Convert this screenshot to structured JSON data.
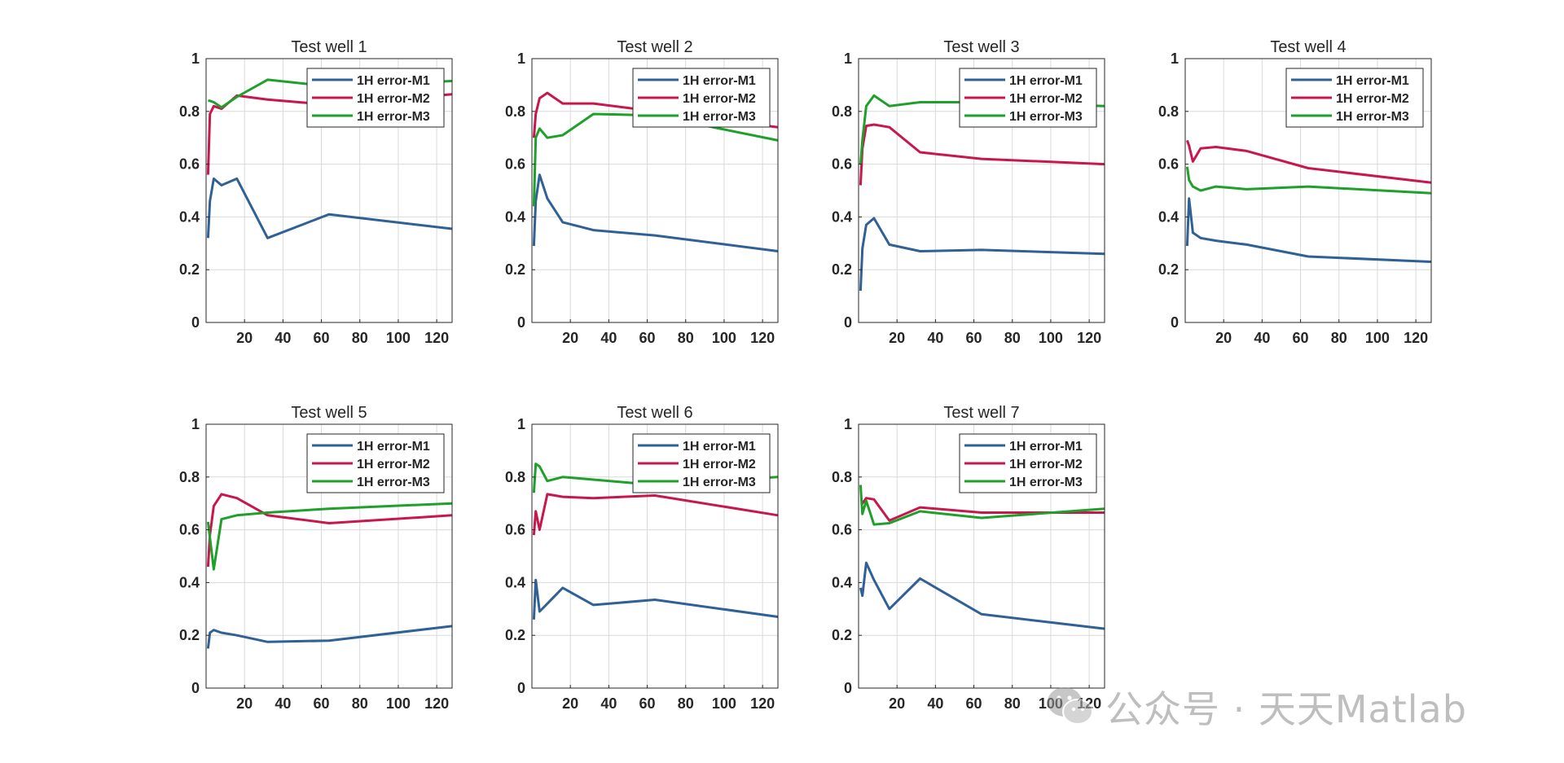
{
  "colors": {
    "M1": "#2f6196",
    "M2": "#c8174d",
    "M3": "#1ea02a",
    "grid": "#d9d9d9",
    "axis": "#262626"
  },
  "watermark": {
    "text": "公众号 · 天天Matlab",
    "icon": "wechat-icon"
  },
  "chart_data": [
    {
      "type": "line",
      "title": "Test well 1",
      "xlim": [
        0,
        128
      ],
      "ylim": [
        0,
        1
      ],
      "xticks": [
        "20",
        "40",
        "60",
        "80",
        "100",
        "120"
      ],
      "yticks": [
        "0",
        "0.2",
        "0.4",
        "0.6",
        "0.8",
        "1"
      ],
      "grid": true,
      "legend_position": "top-right",
      "x": [
        1,
        2,
        4,
        8,
        16,
        32,
        64,
        128
      ],
      "series": [
        {
          "name": "1H error-M1",
          "values": [
            0.32,
            0.46,
            0.545,
            0.52,
            0.545,
            0.32,
            0.41,
            0.355
          ]
        },
        {
          "name": "1H error-M2",
          "values": [
            0.56,
            0.79,
            0.82,
            0.81,
            0.86,
            0.845,
            0.825,
            0.865
          ]
        },
        {
          "name": "1H error-M3",
          "values": [
            0.84,
            0.84,
            0.835,
            0.815,
            0.855,
            0.92,
            0.895,
            0.915
          ]
        }
      ]
    },
    {
      "type": "line",
      "title": "Test well 2",
      "xlim": [
        0,
        128
      ],
      "ylim": [
        0,
        1
      ],
      "xticks": [
        "20",
        "40",
        "60",
        "80",
        "100",
        "120"
      ],
      "yticks": [
        "0",
        "0.2",
        "0.4",
        "0.6",
        "0.8",
        "1"
      ],
      "grid": true,
      "legend_position": "top-right",
      "x": [
        1,
        2,
        4,
        8,
        16,
        32,
        64,
        128
      ],
      "series": [
        {
          "name": "1H error-M1",
          "values": [
            0.29,
            0.46,
            0.56,
            0.47,
            0.38,
            0.35,
            0.33,
            0.27
          ]
        },
        {
          "name": "1H error-M2",
          "values": [
            0.7,
            0.79,
            0.85,
            0.87,
            0.83,
            0.83,
            0.8,
            0.74
          ]
        },
        {
          "name": "1H error-M3",
          "values": [
            0.44,
            0.7,
            0.735,
            0.7,
            0.71,
            0.79,
            0.785,
            0.69
          ]
        }
      ]
    },
    {
      "type": "line",
      "title": "Test well 3",
      "xlim": [
        0,
        128
      ],
      "ylim": [
        0,
        1
      ],
      "xticks": [
        "20",
        "40",
        "60",
        "80",
        "100",
        "120"
      ],
      "yticks": [
        "0",
        "0.2",
        "0.4",
        "0.6",
        "0.8",
        "1"
      ],
      "grid": true,
      "legend_position": "top-right",
      "x": [
        1,
        2,
        4,
        8,
        16,
        32,
        64,
        128
      ],
      "series": [
        {
          "name": "1H error-M1",
          "values": [
            0.12,
            0.28,
            0.37,
            0.395,
            0.295,
            0.27,
            0.275,
            0.26
          ]
        },
        {
          "name": "1H error-M2",
          "values": [
            0.52,
            0.66,
            0.745,
            0.75,
            0.74,
            0.645,
            0.62,
            0.6
          ]
        },
        {
          "name": "1H error-M3",
          "values": [
            0.6,
            0.69,
            0.82,
            0.86,
            0.82,
            0.835,
            0.835,
            0.82
          ]
        }
      ]
    },
    {
      "type": "line",
      "title": "Test well 4",
      "xlim": [
        0,
        128
      ],
      "ylim": [
        0,
        1
      ],
      "xticks": [
        "20",
        "40",
        "60",
        "80",
        "100",
        "120"
      ],
      "yticks": [
        "0",
        "0.2",
        "0.4",
        "0.6",
        "0.8",
        "1"
      ],
      "grid": true,
      "legend_position": "top-right",
      "x": [
        1,
        2,
        4,
        8,
        16,
        32,
        64,
        128
      ],
      "series": [
        {
          "name": "1H error-M1",
          "values": [
            0.29,
            0.47,
            0.34,
            0.32,
            0.31,
            0.295,
            0.25,
            0.23
          ]
        },
        {
          "name": "1H error-M2",
          "values": [
            0.69,
            0.67,
            0.61,
            0.66,
            0.665,
            0.65,
            0.585,
            0.53
          ]
        },
        {
          "name": "1H error-M3",
          "values": [
            0.59,
            0.54,
            0.515,
            0.5,
            0.515,
            0.505,
            0.515,
            0.49
          ]
        }
      ]
    },
    {
      "type": "line",
      "title": "Test well 5",
      "xlim": [
        0,
        128
      ],
      "ylim": [
        0,
        1
      ],
      "xticks": [
        "20",
        "40",
        "60",
        "80",
        "100",
        "120"
      ],
      "yticks": [
        "0",
        "0.2",
        "0.4",
        "0.6",
        "0.8",
        "1"
      ],
      "grid": true,
      "legend_position": "top-right",
      "x": [
        1,
        2,
        4,
        8,
        16,
        32,
        64,
        128
      ],
      "series": [
        {
          "name": "1H error-M1",
          "values": [
            0.15,
            0.21,
            0.22,
            0.21,
            0.2,
            0.175,
            0.18,
            0.235
          ]
        },
        {
          "name": "1H error-M2",
          "values": [
            0.46,
            0.58,
            0.69,
            0.735,
            0.72,
            0.655,
            0.625,
            0.655
          ]
        },
        {
          "name": "1H error-M3",
          "values": [
            0.63,
            0.57,
            0.45,
            0.64,
            0.655,
            0.665,
            0.68,
            0.7
          ]
        }
      ]
    },
    {
      "type": "line",
      "title": "Test well 6",
      "xlim": [
        0,
        128
      ],
      "ylim": [
        0,
        1
      ],
      "xticks": [
        "20",
        "40",
        "60",
        "80",
        "100",
        "120"
      ],
      "yticks": [
        "0",
        "0.2",
        "0.4",
        "0.6",
        "0.8",
        "1"
      ],
      "grid": true,
      "legend_position": "top-right",
      "x": [
        1,
        2,
        4,
        8,
        16,
        32,
        64,
        128
      ],
      "series": [
        {
          "name": "1H error-M1",
          "values": [
            0.26,
            0.41,
            0.29,
            0.32,
            0.38,
            0.315,
            0.335,
            0.27
          ]
        },
        {
          "name": "1H error-M2",
          "values": [
            0.58,
            0.67,
            0.6,
            0.735,
            0.725,
            0.72,
            0.73,
            0.655
          ]
        },
        {
          "name": "1H error-M3",
          "values": [
            0.74,
            0.85,
            0.84,
            0.785,
            0.8,
            0.79,
            0.77,
            0.8
          ]
        }
      ]
    },
    {
      "type": "line",
      "title": "Test well 7",
      "xlim": [
        0,
        128
      ],
      "ylim": [
        0,
        1
      ],
      "xticks": [
        "20",
        "40",
        "60",
        "80",
        "100",
        "120"
      ],
      "yticks": [
        "0",
        "0.2",
        "0.4",
        "0.6",
        "0.8",
        "1"
      ],
      "grid": true,
      "legend_position": "top-right",
      "x": [
        1,
        2,
        4,
        8,
        16,
        32,
        64,
        128
      ],
      "series": [
        {
          "name": "1H error-M1",
          "values": [
            0.38,
            0.35,
            0.475,
            0.41,
            0.3,
            0.415,
            0.28,
            0.225
          ]
        },
        {
          "name": "1H error-M2",
          "values": [
            0.7,
            0.7,
            0.72,
            0.715,
            0.635,
            0.685,
            0.665,
            0.665
          ]
        },
        {
          "name": "1H error-M3",
          "values": [
            0.77,
            0.66,
            0.71,
            0.62,
            0.625,
            0.67,
            0.645,
            0.68
          ]
        }
      ]
    }
  ]
}
